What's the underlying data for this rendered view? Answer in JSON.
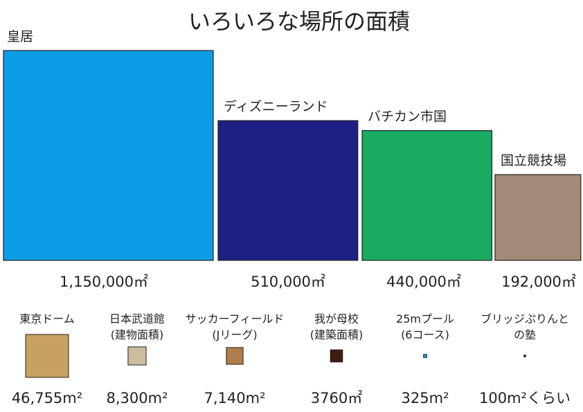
{
  "chart_data": {
    "type": "bar",
    "title": "いろいろな場所の面積",
    "unit": "m²",
    "large": [
      {
        "name": "皇居",
        "area": 1150000,
        "value_label": "1,150,000㎡",
        "color": "#0b9ee7"
      },
      {
        "name": "ディズニーランド",
        "area": 510000,
        "value_label": "510,000㎡",
        "color": "#1e2184"
      },
      {
        "name": "バチカン市国",
        "area": 440000,
        "value_label": "440,000㎡",
        "color": "#18ab61"
      },
      {
        "name": "国立競技場",
        "area": 192000,
        "value_label": "192,000㎡",
        "color": "#a38a78"
      }
    ],
    "small": [
      {
        "line1": "東京ドーム",
        "line2": "",
        "area": 46755,
        "value_label": "46,755m²",
        "color": "#c8a062"
      },
      {
        "line1": "日本武道館",
        "line2": "(建物面積)",
        "area": 8300,
        "value_label": "8,300m²",
        "color": "#ccbd9f"
      },
      {
        "line1": "サッカーフィールド",
        "line2": "(Jリーグ)",
        "area": 7140,
        "value_label": "7,140m²",
        "color": "#b07c4e"
      },
      {
        "line1": "我が母校",
        "line2": "(建築面積)",
        "area": 3760,
        "value_label": "3760㎡",
        "color": "#401d10"
      },
      {
        "line1": "25mプール",
        "line2": "(6コース)",
        "area": 325,
        "value_label": "325m²",
        "color": "#1e8ad0"
      },
      {
        "line1": "ブリッジぷりんと",
        "line2": "の塾",
        "area": 100,
        "value_label": "100m²くらい",
        "color": "#231f20"
      }
    ]
  }
}
